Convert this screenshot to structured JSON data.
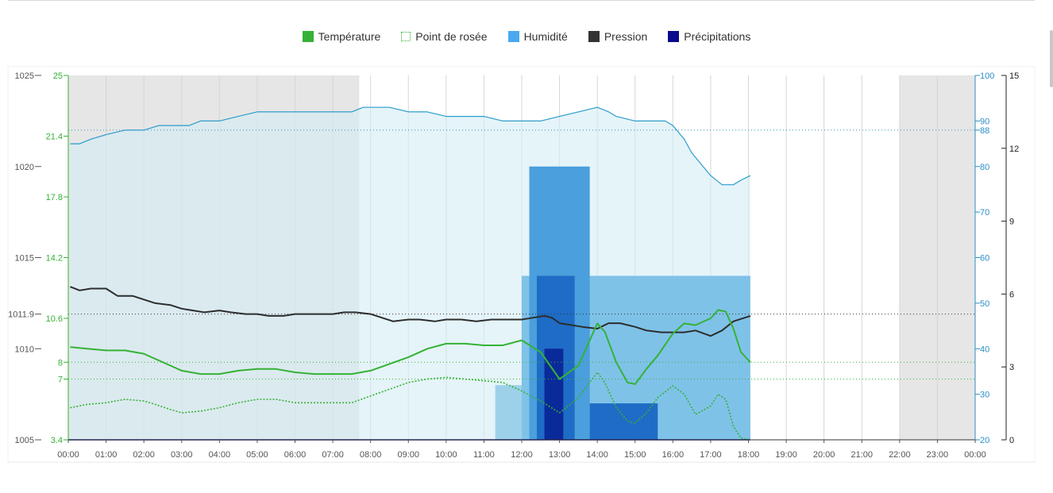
{
  "legend": [
    {
      "label": "Température",
      "color": "#35b235",
      "style": "solid",
      "icon": "solid-square-icon"
    },
    {
      "label": "Point de rosée",
      "color": "#35b235",
      "style": "dotted",
      "icon": "dotted-square-icon"
    },
    {
      "label": "Humidité",
      "color": "#4aa8f0",
      "style": "solid",
      "icon": "solid-square-icon"
    },
    {
      "label": "Pression",
      "color": "#333333",
      "style": "solid",
      "icon": "solid-square-icon"
    },
    {
      "label": "Précipitations",
      "color": "#0a0a8a",
      "style": "solid",
      "icon": "solid-square-icon"
    }
  ],
  "chart_data": {
    "type": "line",
    "title": "",
    "x_unit": "hour",
    "x_range": [
      0,
      24
    ],
    "x_ticks": [
      "00:00",
      "01:00",
      "02:00",
      "03:00",
      "04:00",
      "05:00",
      "06:00",
      "07:00",
      "08:00",
      "09:00",
      "10:00",
      "11:00",
      "12:00",
      "13:00",
      "14:00",
      "15:00",
      "16:00",
      "17:00",
      "18:00",
      "19:00",
      "20:00",
      "21:00",
      "22:00",
      "23:00",
      "00:00"
    ],
    "night_shading": [
      [
        0,
        7.7
      ],
      [
        22,
        24
      ]
    ],
    "axes": {
      "pressure": {
        "side": "left-outer",
        "range": [
          1005,
          1025
        ],
        "ticks": [
          "1025",
          "1020",
          "1015",
          "1011.9",
          "1010",
          "1005"
        ],
        "tick_values": [
          1025,
          1020,
          1015,
          1011.9,
          1010,
          1005
        ],
        "color": "#555555"
      },
      "temperature": {
        "side": "left-inner",
        "range": [
          3.4,
          25
        ],
        "ticks": [
          "25",
          "21.4",
          "17.8",
          "14.2",
          "10.6",
          "8",
          "7",
          "3.4"
        ],
        "tick_values": [
          25,
          21.4,
          17.8,
          14.2,
          10.6,
          8,
          7,
          3.4
        ],
        "color": "#35b235"
      },
      "humidity": {
        "side": "right-inner",
        "range": [
          20,
          100
        ],
        "ticks": [
          "100",
          "90",
          "88",
          "80",
          "70",
          "60",
          "50",
          "40",
          "30",
          "20"
        ],
        "tick_values": [
          100,
          90,
          88,
          80,
          70,
          60,
          50,
          40,
          30,
          20
        ],
        "color": "#2b8fc7"
      },
      "precipitation": {
        "side": "right-outer",
        "range": [
          0,
          15
        ],
        "ticks": [
          "15",
          "12",
          "9",
          "6",
          "3",
          "0"
        ],
        "tick_values": [
          15,
          12,
          9,
          6,
          3,
          0
        ],
        "color": "#222222"
      }
    },
    "reference_lines": [
      {
        "axis": "humidity",
        "value": 88,
        "color": "#2b8fc7"
      },
      {
        "axis": "pressure",
        "value": 1011.9,
        "color": "#333333"
      },
      {
        "axis": "temperature",
        "value": 8,
        "color": "#35b235"
      },
      {
        "axis": "temperature",
        "value": 7,
        "color": "#35b235"
      }
    ],
    "series": [
      {
        "name": "Humidité",
        "axis": "humidity",
        "color": "#2b9ccc",
        "fill": "#e3f3f8",
        "x": [
          0.05,
          0.3,
          0.6,
          1,
          1.5,
          2,
          2.4,
          3,
          3.2,
          3.5,
          4,
          4.5,
          5,
          5.5,
          6,
          6.5,
          7,
          7.5,
          7.8,
          8,
          8.5,
          9,
          9.5,
          10,
          10.5,
          11,
          11.5,
          12,
          12.5,
          13,
          13.5,
          14,
          14.3,
          14.5,
          15,
          15.3,
          15.5,
          15.8,
          16,
          16.3,
          16.5,
          16.7,
          17,
          17.3,
          17.6,
          17.8,
          18.05
        ],
        "y": [
          85,
          85,
          86,
          87,
          88,
          88,
          89,
          89,
          89,
          90,
          90,
          91,
          92,
          92,
          92,
          92,
          92,
          92,
          93,
          93,
          93,
          92,
          92,
          91,
          91,
          91,
          90,
          90,
          90,
          91,
          92,
          93,
          92,
          91,
          90,
          90,
          90,
          90,
          89,
          86,
          83,
          81,
          78,
          76,
          76,
          77,
          78
        ]
      },
      {
        "name": "Pression",
        "axis": "pressure",
        "color": "#2d2d2d",
        "x": [
          0.05,
          0.3,
          0.6,
          1,
          1.3,
          1.7,
          2,
          2.3,
          2.7,
          3,
          3.3,
          3.6,
          4,
          4.3,
          4.7,
          5,
          5.3,
          5.7,
          6,
          6.5,
          7,
          7.3,
          7.6,
          8,
          8.3,
          8.6,
          9,
          9.3,
          9.7,
          10,
          10.4,
          10.8,
          11.2,
          11.6,
          12,
          12.3,
          12.6,
          12.8,
          13,
          13.3,
          13.6,
          14,
          14.3,
          14.6,
          15,
          15.3,
          15.7,
          16,
          16.3,
          16.6,
          17,
          17.3,
          17.6,
          18.05
        ],
        "y": [
          1013.4,
          1013.2,
          1013.3,
          1013.3,
          1012.9,
          1012.9,
          1012.7,
          1012.5,
          1012.4,
          1012.2,
          1012.1,
          1012,
          1012.1,
          1012,
          1011.9,
          1011.9,
          1011.8,
          1011.8,
          1011.9,
          1011.9,
          1011.9,
          1012,
          1012,
          1011.9,
          1011.7,
          1011.5,
          1011.6,
          1011.6,
          1011.5,
          1011.6,
          1011.6,
          1011.5,
          1011.6,
          1011.6,
          1011.6,
          1011.7,
          1011.8,
          1011.7,
          1011.4,
          1011.3,
          1011.2,
          1011.1,
          1011.4,
          1011.4,
          1011.2,
          1011,
          1010.9,
          1010.9,
          1010.9,
          1011,
          1010.7,
          1011,
          1011.5,
          1011.8
        ]
      },
      {
        "name": "Température",
        "axis": "temperature",
        "color": "#35b235",
        "x": [
          0.05,
          0.5,
          1,
          1.5,
          2,
          2.3,
          2.7,
          3,
          3.5,
          4,
          4.5,
          5,
          5.5,
          6,
          6.5,
          7,
          7.5,
          8,
          8.5,
          9,
          9.5,
          10,
          10.5,
          11,
          11.5,
          12,
          12.5,
          13,
          13.5,
          14,
          14.2,
          14.5,
          14.8,
          15,
          15.3,
          15.6,
          16,
          16.3,
          16.6,
          17,
          17.2,
          17.4,
          17.6,
          17.8,
          18.05
        ],
        "y": [
          8.9,
          8.8,
          8.7,
          8.7,
          8.5,
          8.2,
          7.8,
          7.5,
          7.3,
          7.3,
          7.5,
          7.6,
          7.6,
          7.4,
          7.3,
          7.3,
          7.3,
          7.5,
          7.9,
          8.3,
          8.8,
          9.1,
          9.1,
          9.0,
          9.0,
          9.3,
          8.6,
          7.0,
          7.8,
          10.3,
          9.8,
          8.0,
          6.8,
          6.7,
          7.6,
          8.4,
          9.7,
          10.3,
          10.2,
          10.6,
          11.1,
          11.0,
          10.0,
          8.6,
          8.0
        ]
      },
      {
        "name": "Point de rosée",
        "axis": "temperature",
        "color": "#35b235",
        "dashed": true,
        "x": [
          0.05,
          0.5,
          1,
          1.5,
          2,
          2.3,
          2.7,
          3,
          3.5,
          4,
          4.5,
          5,
          5.5,
          6,
          6.5,
          7,
          7.5,
          8,
          8.5,
          9,
          9.5,
          10,
          10.5,
          11,
          11.5,
          12,
          12.5,
          13,
          13.5,
          14,
          14.2,
          14.5,
          14.8,
          15,
          15.3,
          15.6,
          16,
          16.3,
          16.6,
          17,
          17.2,
          17.4,
          17.6,
          17.8,
          18.05
        ],
        "y": [
          5.3,
          5.5,
          5.6,
          5.8,
          5.7,
          5.5,
          5.2,
          5.0,
          5.1,
          5.3,
          5.6,
          5.8,
          5.8,
          5.6,
          5.6,
          5.6,
          5.6,
          6.0,
          6.4,
          6.8,
          7.0,
          7.1,
          7.0,
          6.9,
          6.8,
          6.3,
          5.7,
          5.0,
          5.9,
          7.4,
          6.8,
          5.3,
          4.5,
          4.4,
          5.0,
          5.9,
          6.6,
          6.1,
          4.9,
          5.4,
          6.1,
          5.8,
          4.2,
          3.5,
          3.4
        ]
      },
      {
        "name": "Précipitations",
        "axis": "precipitation",
        "color": "#0a0a8a",
        "x": [
          11.5,
          12,
          12.5,
          13,
          13.5,
          14,
          14.5,
          15,
          15.5,
          16,
          16.5,
          17,
          17.5,
          18
        ],
        "y": [
          0,
          0,
          0.1,
          0.1,
          0,
          0,
          0.1,
          0.1,
          0,
          0,
          0,
          0,
          0,
          0
        ]
      }
    ],
    "precip_bands": [
      {
        "x0": 11.3,
        "x1": 18.05,
        "level": 0.15,
        "color": "#9dd1ea"
      },
      {
        "x0": 12.0,
        "x1": 18.05,
        "level": 0.45,
        "color": "#7fc2e8"
      },
      {
        "x0": 12.2,
        "x1": 13.8,
        "level": 0.75,
        "color": "#4a9fdc"
      },
      {
        "x0": 12.4,
        "x1": 13.4,
        "level": 0.45,
        "color": "#1f6cc6"
      },
      {
        "x0": 12.6,
        "x1": 13.1,
        "level": 0.25,
        "color": "#0a2a9a"
      },
      {
        "x0": 13.8,
        "x1": 15.6,
        "level": 0.1,
        "color": "#1f6cc6"
      }
    ]
  }
}
